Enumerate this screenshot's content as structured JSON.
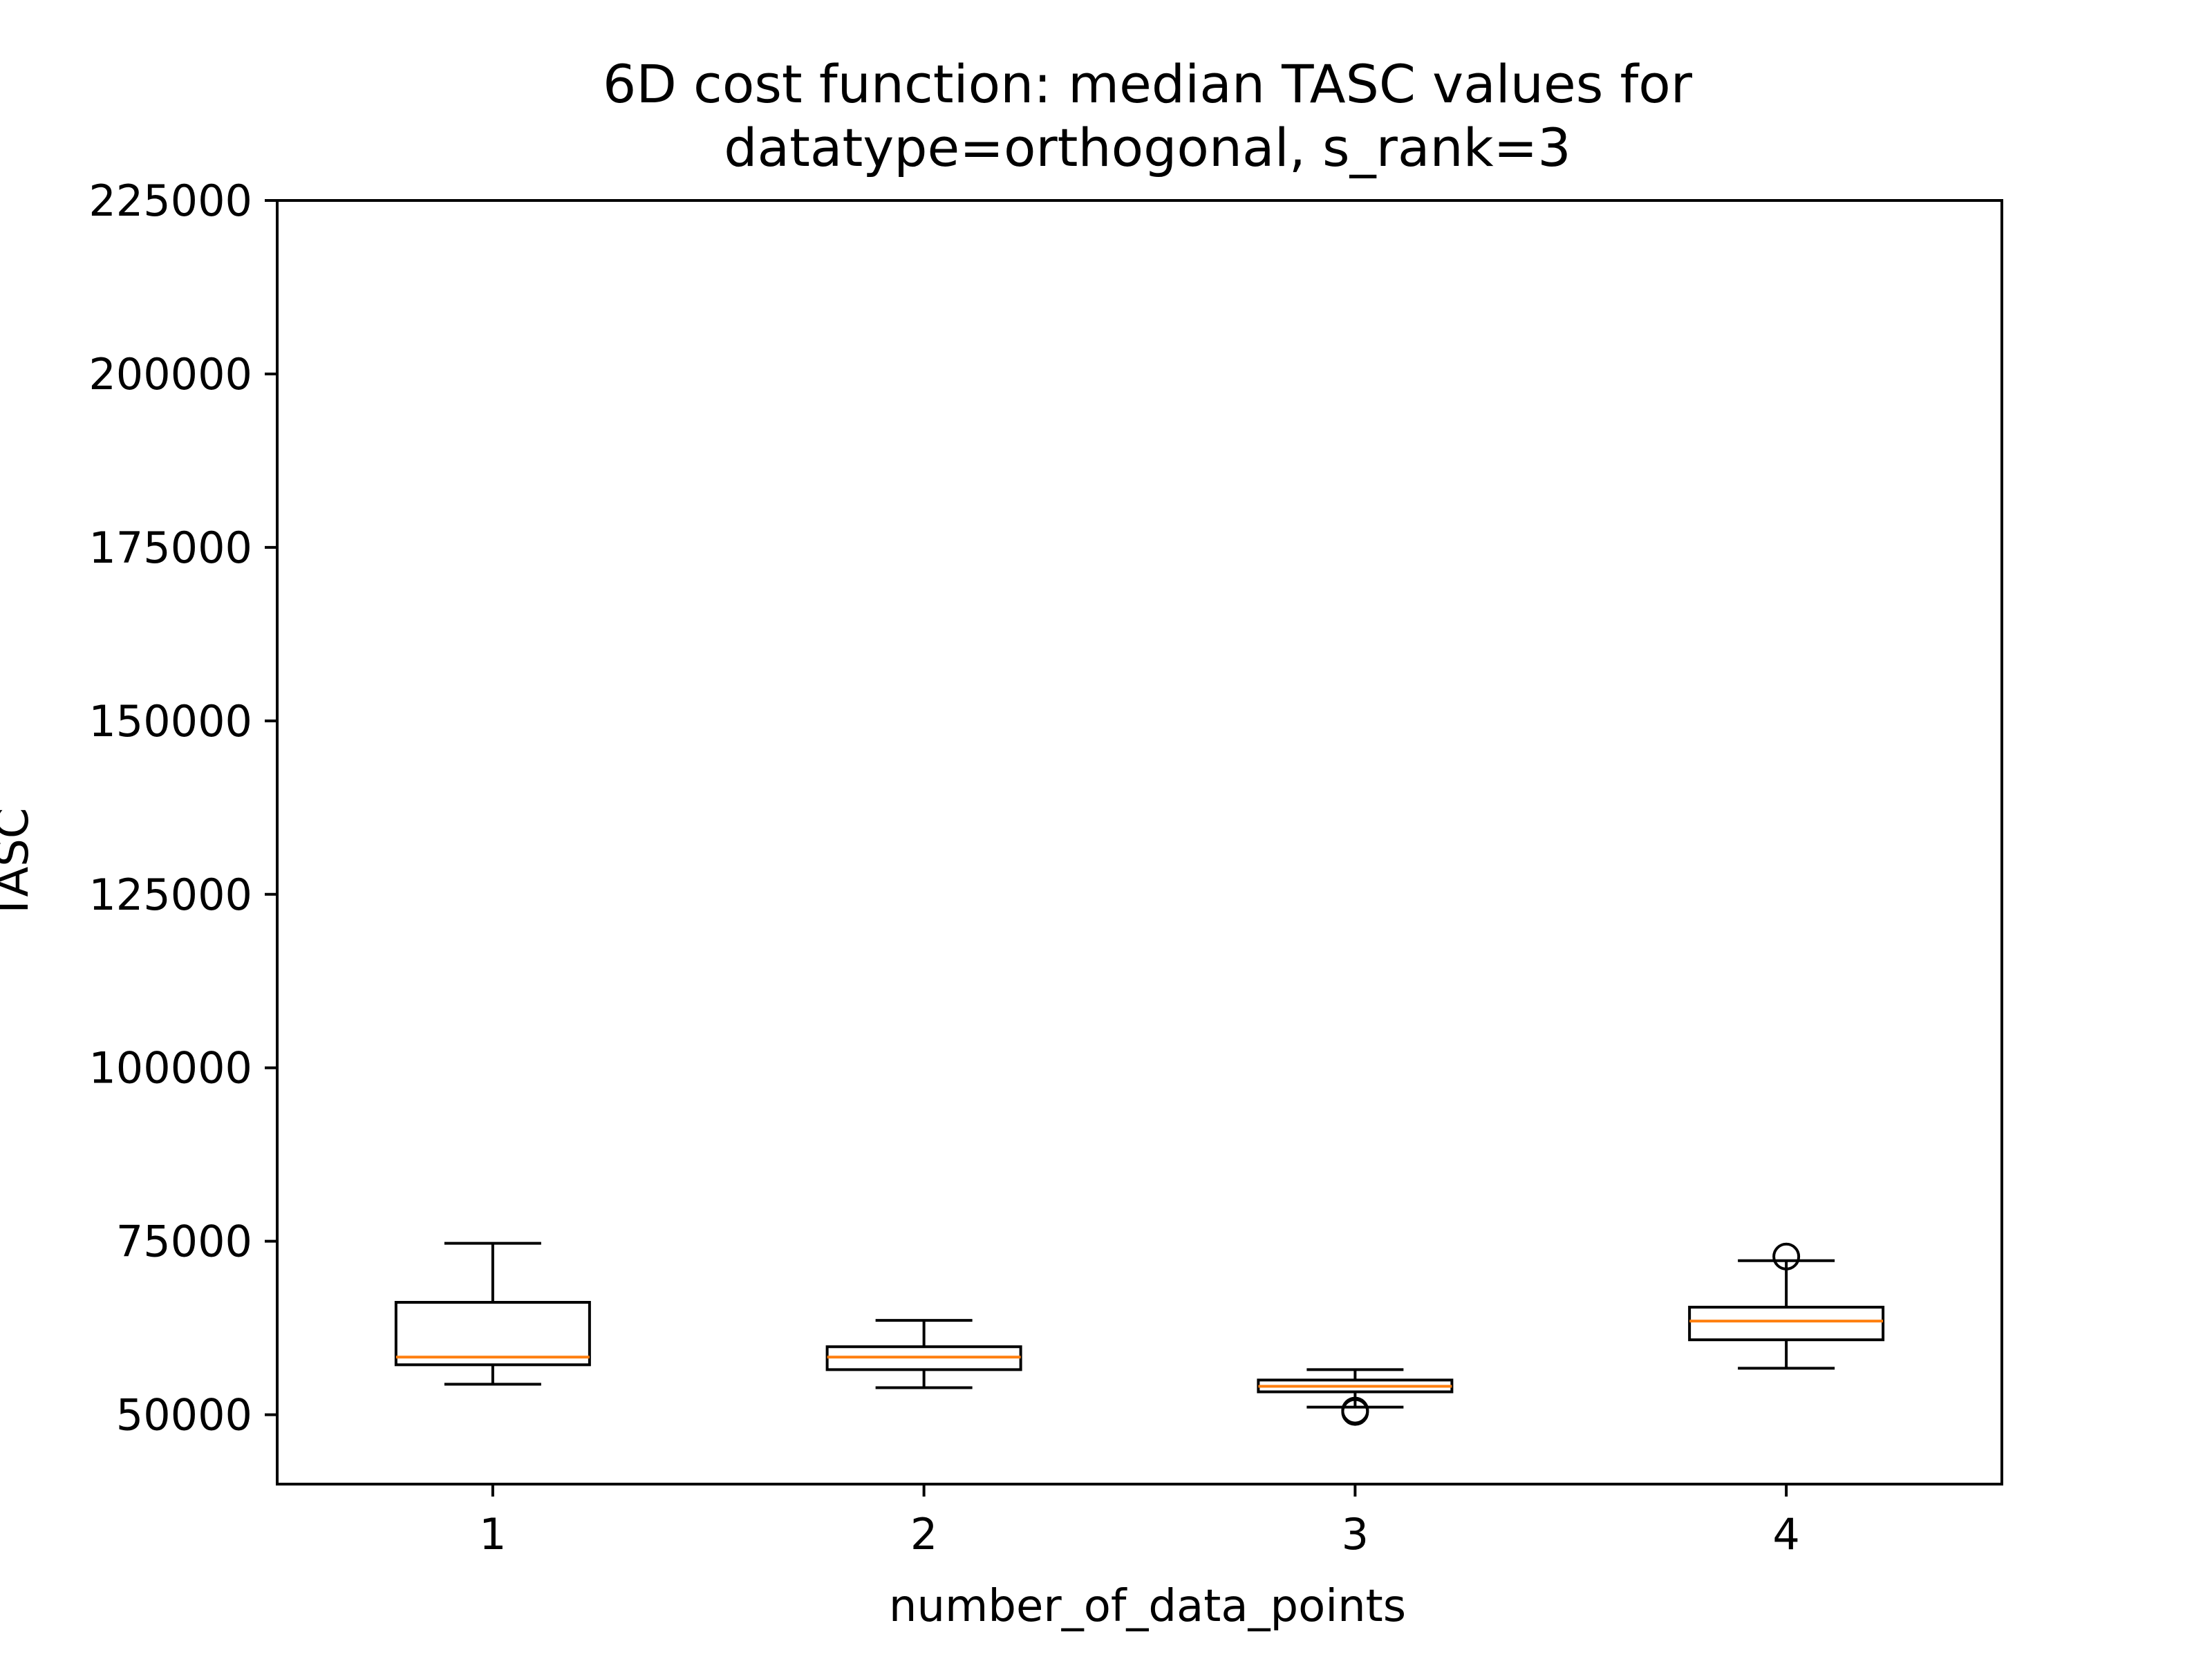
{
  "chart_data": {
    "type": "box",
    "title_lines": [
      "6D cost function: median TASC values for",
      "datatype=orthogonal, s_rank=3"
    ],
    "xlabel": "number_of_data_points",
    "ylabel": "TASC",
    "categories": [
      "1",
      "2",
      "3",
      "4"
    ],
    "ylim": [
      40000,
      225000
    ],
    "yticks": [
      50000,
      75000,
      100000,
      125000,
      150000,
      175000,
      200000,
      225000
    ],
    "grid": false,
    "boxes": [
      {
        "category": "1",
        "whisker_low": 54400,
        "q1": 57200,
        "median": 58300,
        "q3": 66200,
        "whisker_high": 74700,
        "outliers": []
      },
      {
        "category": "2",
        "whisker_low": 53900,
        "q1": 56500,
        "median": 58300,
        "q3": 59800,
        "whisker_high": 63600,
        "outliers": []
      },
      {
        "category": "3",
        "whisker_low": 51100,
        "q1": 53300,
        "median": 54100,
        "q3": 55000,
        "whisker_high": 56500,
        "outliers": [
          50400,
          50600
        ]
      },
      {
        "category": "4",
        "whisker_low": 56700,
        "q1": 60800,
        "median": 63500,
        "q3": 65500,
        "whisker_high": 72200,
        "outliers": [
          72800
        ]
      }
    ],
    "colors": {
      "box": "#000000",
      "median": "#ff7f0e",
      "outlier": "#000000"
    }
  }
}
